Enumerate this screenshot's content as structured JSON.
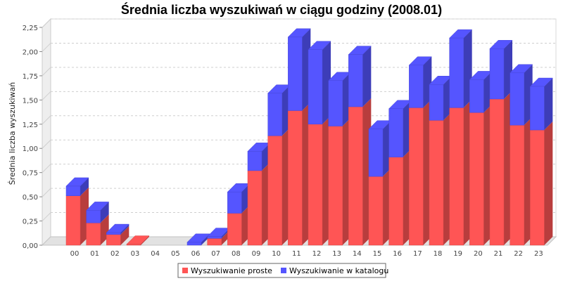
{
  "chart_data": {
    "type": "bar",
    "stacked": true,
    "three_d": true,
    "title": "Średnia liczba wyszukiwań w ciągu godziny (2008.01)",
    "xlabel": "",
    "ylabel": "Średnia liczba wyszukiwań",
    "ylim": [
      0,
      2.25
    ],
    "yticks": [
      "0,00",
      "0,25",
      "0,50",
      "0,75",
      "1,00",
      "1,25",
      "1,50",
      "1,75",
      "2,00",
      "2,25"
    ],
    "ytick_values": [
      0,
      0.25,
      0.5,
      0.75,
      1.0,
      1.25,
      1.5,
      1.75,
      2.0,
      2.25
    ],
    "grid": true,
    "legend_position": "bottom",
    "categories": [
      "00",
      "01",
      "02",
      "03",
      "04",
      "05",
      "06",
      "07",
      "08",
      "09",
      "10",
      "11",
      "12",
      "13",
      "14",
      "15",
      "16",
      "17",
      "18",
      "19",
      "20",
      "21",
      "22",
      "23"
    ],
    "series": [
      {
        "name": "Wyszukiwanie proste",
        "color": "#ff5555",
        "values": [
          0.51,
          0.23,
          0.11,
          0.01,
          0,
          0,
          0,
          0.07,
          0.33,
          0.77,
          1.13,
          1.39,
          1.25,
          1.23,
          1.43,
          0.71,
          0.91,
          1.42,
          1.29,
          1.42,
          1.37,
          1.51,
          1.24,
          1.19
        ]
      },
      {
        "name": "Wyszukiwanie w katalogu",
        "color": "#5555ff",
        "values": [
          0.1,
          0.13,
          0.02,
          0,
          0,
          0,
          0.03,
          0.02,
          0.22,
          0.2,
          0.44,
          0.76,
          0.77,
          0.47,
          0.54,
          0.49,
          0.5,
          0.44,
          0.37,
          0.72,
          0.34,
          0.52,
          0.54,
          0.45
        ]
      }
    ]
  }
}
